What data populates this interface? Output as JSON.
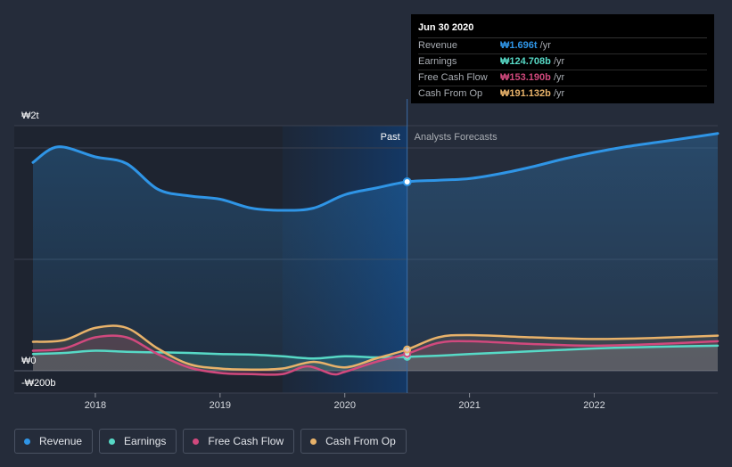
{
  "chart_data": {
    "type": "area",
    "currency_unit": "₩",
    "y_axis_labels": [
      "₩2t",
      "₩0",
      "-₩200b"
    ],
    "x_tick_labels": [
      "2018",
      "2019",
      "2020",
      "2021",
      "2022"
    ],
    "x_ticks": [
      2018.0,
      2019.0,
      2020.0,
      2021.0,
      2022.0
    ],
    "xlim": [
      2017.35,
      2022.99
    ],
    "ylim_billions": [
      -200,
      2000
    ],
    "past_label": "Past",
    "forecast_label": "Analysts Forecasts",
    "forecast_start": 2020.5,
    "shaded_range": [
      2019.5,
      2020.5
    ],
    "series": [
      {
        "name": "Revenue",
        "color": "#2f95e6",
        "x": [
          2017.5,
          2017.7,
          2018.0,
          2018.25,
          2018.5,
          2018.75,
          2019.0,
          2019.25,
          2019.5,
          2019.75,
          2020.0,
          2020.25,
          2020.5,
          2020.75,
          2021.0,
          2021.25,
          2021.5,
          2021.75,
          2022.0,
          2022.25,
          2022.5,
          2022.75,
          2022.99
        ],
        "values": [
          1870,
          2010,
          1920,
          1860,
          1630,
          1570,
          1540,
          1460,
          1440,
          1460,
          1580,
          1640,
          1696,
          1710,
          1725,
          1770,
          1830,
          1900,
          1960,
          2010,
          2050,
          2090,
          2130
        ]
      },
      {
        "name": "Earnings",
        "color": "#57d9c6",
        "x": [
          2017.5,
          2017.75,
          2018.0,
          2018.25,
          2018.5,
          2018.75,
          2019.0,
          2019.25,
          2019.5,
          2019.75,
          2020.0,
          2020.25,
          2020.5,
          2020.75,
          2021.0,
          2021.5,
          2022.0,
          2022.5,
          2022.99
        ],
        "values": [
          150,
          160,
          180,
          170,
          165,
          160,
          150,
          145,
          130,
          110,
          130,
          120,
          125,
          135,
          150,
          175,
          200,
          215,
          225
        ]
      },
      {
        "name": "Free Cash Flow",
        "color": "#d1497d",
        "x": [
          2017.5,
          2017.75,
          2018.0,
          2018.25,
          2018.5,
          2018.75,
          2019.0,
          2019.25,
          2019.5,
          2019.7,
          2019.9,
          2020.0,
          2020.25,
          2020.5,
          2020.75,
          2021.0,
          2021.5,
          2022.0,
          2022.5,
          2022.99
        ],
        "values": [
          180,
          200,
          300,
          300,
          150,
          30,
          -20,
          -30,
          -30,
          40,
          -30,
          -10,
          80,
          153,
          250,
          265,
          240,
          225,
          240,
          265
        ]
      },
      {
        "name": "Cash From Op",
        "color": "#e8b26a",
        "x": [
          2017.5,
          2017.75,
          2018.0,
          2018.25,
          2018.5,
          2018.75,
          2019.0,
          2019.25,
          2019.5,
          2019.75,
          2020.0,
          2020.25,
          2020.5,
          2020.75,
          2021.0,
          2021.5,
          2022.0,
          2022.5,
          2022.99
        ],
        "values": [
          260,
          275,
          385,
          385,
          200,
          60,
          20,
          10,
          20,
          80,
          30,
          110,
          191,
          300,
          320,
          300,
          285,
          295,
          315
        ]
      }
    ]
  },
  "tooltip": {
    "date": "Jun 30 2020",
    "rows": [
      {
        "label": "Revenue",
        "value": "₩1.696t",
        "unit": "/yr",
        "color": "#2f95e6"
      },
      {
        "label": "Earnings",
        "value": "₩124.708b",
        "unit": "/yr",
        "color": "#57d9c6"
      },
      {
        "label": "Free Cash Flow",
        "value": "₩153.190b",
        "unit": "/yr",
        "color": "#d1497d"
      },
      {
        "label": "Cash From Op",
        "value": "₩191.132b",
        "unit": "/yr",
        "color": "#e8b26a"
      }
    ]
  },
  "legend": {
    "items": [
      {
        "label": "Revenue",
        "color": "#2f95e6"
      },
      {
        "label": "Earnings",
        "color": "#57d9c6"
      },
      {
        "label": "Free Cash Flow",
        "color": "#d1497d"
      },
      {
        "label": "Cash From Op",
        "color": "#e8b26a"
      }
    ]
  }
}
